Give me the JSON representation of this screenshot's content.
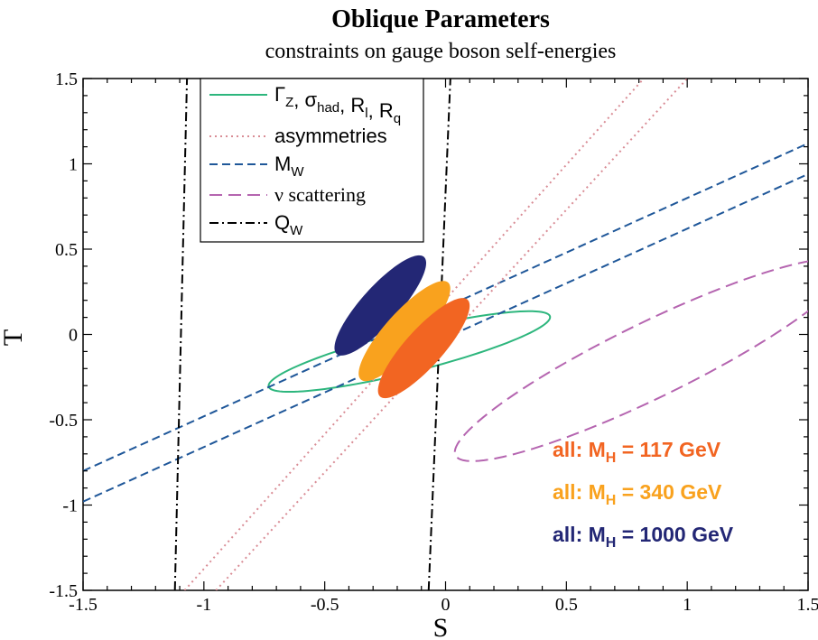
{
  "chart_data": {
    "type": "line",
    "title": "Oblique Parameters",
    "subtitle": "constraints on gauge boson self-energies",
    "xlabel": "S",
    "ylabel": "T",
    "xlim": [
      -1.5,
      1.5
    ],
    "ylim": [
      -1.5,
      1.5
    ],
    "xticks": [
      "-1.5",
      "-1",
      "-0.5",
      "0",
      "0.5",
      "1",
      "1.5"
    ],
    "yticks": [
      "-1.5",
      "-1",
      "-0.5",
      "0",
      "0.5",
      "1",
      "1.5"
    ],
    "grid": false,
    "legend_position": "top-left",
    "legend": [
      {
        "key": "gz",
        "label": "Γ_Z, σ_had, R_l, R_q",
        "color": "#2db67d",
        "dash": "solid"
      },
      {
        "key": "asym",
        "label": "asymmetries",
        "color": "#d98c95",
        "dash": "dotted"
      },
      {
        "key": "mw",
        "label": "M_W",
        "color": "#1f5799",
        "dash": "dashed"
      },
      {
        "key": "nu",
        "label": "ν scattering",
        "color": "#b565b0",
        "dash": "long-dashed"
      },
      {
        "key": "qw",
        "label": "Q_W",
        "color": "#000000",
        "dash": "dash-dot"
      }
    ],
    "series": [
      {
        "key": "mw_upper",
        "color": "#1f5799",
        "points": [
          [
            -1.5,
            -0.8
          ],
          [
            1.5,
            1.12
          ]
        ]
      },
      {
        "key": "mw_lower",
        "color": "#1f5799",
        "points": [
          [
            -1.5,
            -0.98
          ],
          [
            1.5,
            0.94
          ]
        ]
      },
      {
        "key": "asym_1",
        "color": "#d98c95",
        "points": [
          [
            -0.95,
            -1.5
          ],
          [
            1.0,
            1.5
          ]
        ]
      },
      {
        "key": "asym_2",
        "color": "#d98c95",
        "points": [
          [
            -1.08,
            -1.5
          ],
          [
            0.82,
            1.5
          ]
        ]
      },
      {
        "key": "qw_left",
        "color": "#000000",
        "points": [
          [
            -1.12,
            -1.5
          ],
          [
            -1.07,
            1.5
          ]
        ]
      },
      {
        "key": "qw_right",
        "color": "#000000",
        "points": [
          [
            -0.07,
            -1.5
          ],
          [
            0.02,
            1.5
          ]
        ]
      }
    ],
    "ellipses": [
      {
        "key": "gz_ellipse",
        "type": "outline",
        "color": "#2db67d",
        "cx": -0.15,
        "cy": -0.1,
        "rx": 0.6,
        "ry": 0.12,
        "angle_deg": 14
      },
      {
        "key": "nu_ellipse",
        "type": "outline",
        "color": "#b565b0",
        "cx": 0.85,
        "cy": -0.15,
        "rx": 0.9,
        "ry": 0.22,
        "angle_deg": 26
      },
      {
        "key": "mh1000",
        "type": "filled",
        "color": "#232775",
        "cx": -0.27,
        "cy": 0.17,
        "rx": 0.27,
        "ry": 0.11,
        "angle_deg": 48
      },
      {
        "key": "mh340",
        "type": "filled",
        "color": "#f9a21e",
        "cx": -0.17,
        "cy": 0.02,
        "rx": 0.27,
        "ry": 0.11,
        "angle_deg": 48
      },
      {
        "key": "mh117",
        "type": "filled",
        "color": "#f26522",
        "cx": -0.09,
        "cy": -0.08,
        "rx": 0.27,
        "ry": 0.11,
        "angle_deg": 48
      }
    ],
    "annotations": [
      {
        "prefix": "all: M",
        "sub": "H",
        "suffix": " =   117 GeV",
        "color": "#f26522"
      },
      {
        "prefix": "all: M",
        "sub": "H",
        "suffix": " =   340 GeV",
        "color": "#f9a21e"
      },
      {
        "prefix": "all: M",
        "sub": "H",
        "suffix": " = 1000 GeV",
        "color": "#232775"
      }
    ]
  }
}
